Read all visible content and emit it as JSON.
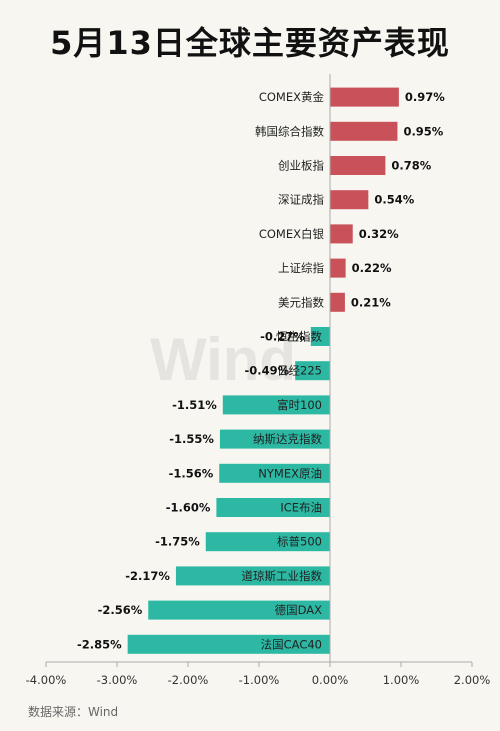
{
  "title": "5月13日全球主要资产表现",
  "source": "数据来源：Wind",
  "watermark": "Wind",
  "chart_data": {
    "type": "bar",
    "orientation": "horizontal",
    "title": "5月13日全球主要资产表现",
    "categories": [
      "COMEX黄金",
      "韩国综合指数",
      "创业板指",
      "深证成指",
      "COMEX白银",
      "上证综指",
      "美元指数",
      "恒生指数",
      "日经225",
      "富时100",
      "纳斯达克指数",
      "NYMEX原油",
      "ICE布油",
      "标普500",
      "道琼斯工业指数",
      "德国DAX",
      "法国CAC40"
    ],
    "values": [
      0.97,
      0.95,
      0.78,
      0.54,
      0.32,
      0.22,
      0.21,
      -0.27,
      -0.49,
      -1.51,
      -1.55,
      -1.56,
      -1.6,
      -1.75,
      -2.17,
      -2.56,
      -2.85
    ],
    "value_labels": [
      "0.97%",
      "0.95%",
      "0.78%",
      "0.54%",
      "0.32%",
      "0.22%",
      "0.21%",
      "-0.27%",
      "-0.49%",
      "-1.51%",
      "-1.55%",
      "-1.56%",
      "-1.60%",
      "-1.75%",
      "-2.17%",
      "-2.56%",
      "-2.85%"
    ],
    "xlim": [
      -4,
      2
    ],
    "xticks": [
      "-4.00%",
      "-3.00%",
      "-2.00%",
      "-1.00%",
      "0.00%",
      "1.00%",
      "2.00%"
    ],
    "xtick_values": [
      -4,
      -3,
      -2,
      -1,
      0,
      1,
      2
    ],
    "positive_color": "#c8515a",
    "negative_color": "#2db8a4",
    "grid": false,
    "legend": "none"
  }
}
